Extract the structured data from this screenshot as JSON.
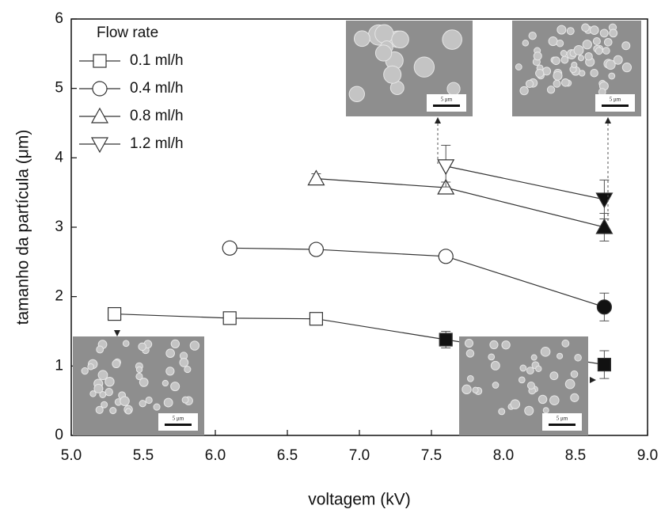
{
  "chart_data": {
    "type": "line",
    "x_label": "voltagem (kV)",
    "y_label": "tamanho da partícula (μm)",
    "legend_title": "Flow rate",
    "inset_scale_label": "5 μm",
    "xlim": [
      5.0,
      9.0
    ],
    "xticks": [
      {
        "value": 5,
        "label": "5.0"
      },
      {
        "value": 5.5,
        "label": "5.5"
      },
      {
        "value": 6,
        "label": "6.0"
      },
      {
        "value": 6.5,
        "label": "6.5"
      },
      {
        "value": 7,
        "label": "7.0"
      },
      {
        "value": 7.5,
        "label": "7.5"
      },
      {
        "value": 8,
        "label": "8.0"
      },
      {
        "value": 8.5,
        "label": "8.5"
      },
      {
        "value": 9,
        "label": "9.0"
      }
    ],
    "ylim": [
      0,
      6
    ],
    "yticks": [
      0,
      1,
      2,
      3,
      4,
      5,
      6
    ],
    "series": [
      {
        "name": "0.1 ml/h",
        "marker": "square",
        "color": "#333333",
        "x": [
          5.3,
          6.1,
          6.7,
          7.6,
          8.7
        ],
        "values": [
          1.75,
          1.69,
          1.68,
          1.38,
          1.02
        ],
        "errors": [
          null,
          null,
          null,
          0.12,
          0.2
        ],
        "filled": [
          false,
          false,
          false,
          true,
          true
        ]
      },
      {
        "name": "0.4 ml/h",
        "marker": "circle",
        "color": "#333333",
        "x": [
          6.1,
          6.7,
          7.6,
          8.7
        ],
        "values": [
          2.7,
          2.68,
          2.58,
          1.85
        ],
        "errors": [
          0.08,
          0.08,
          0.06,
          0.2
        ],
        "filled": [
          false,
          false,
          false,
          true
        ]
      },
      {
        "name": "0.8 ml/h",
        "marker": "triangle-up",
        "color": "#333333",
        "x": [
          6.7,
          7.6,
          8.7
        ],
        "values": [
          3.7,
          3.57,
          3.0
        ],
        "errors": [
          0.07,
          0.08,
          0.2
        ],
        "filled": [
          false,
          false,
          true
        ]
      },
      {
        "name": "1.2 ml/h",
        "marker": "triangle-down",
        "color": "#333333",
        "x": [
          7.6,
          8.7
        ],
        "values": [
          3.88,
          3.4
        ],
        "errors": [
          0.3,
          0.28
        ],
        "filled": [
          false,
          true
        ]
      }
    ]
  }
}
